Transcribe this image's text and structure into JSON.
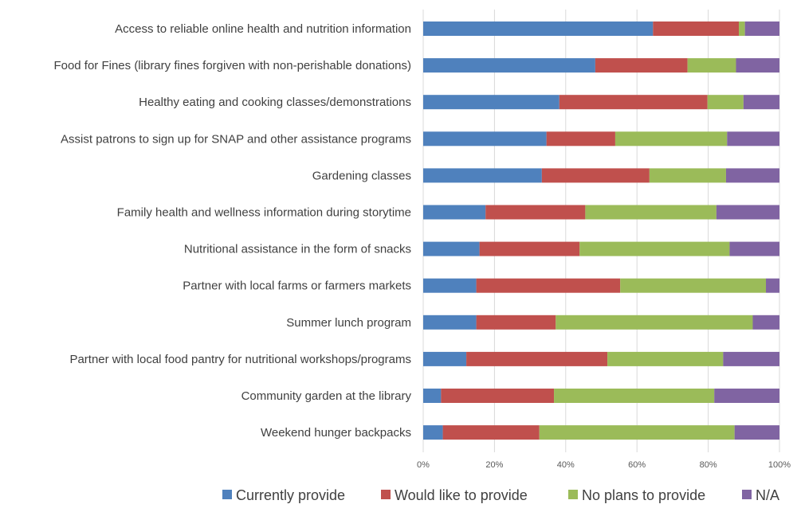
{
  "chart_data": {
    "type": "bar",
    "orientation": "horizontal",
    "stacked": "percent",
    "title": "",
    "xlabel": "",
    "ylabel": "",
    "xlim": [
      0,
      100
    ],
    "x_ticks": [
      "0%",
      "20%",
      "40%",
      "60%",
      "80%",
      "100%"
    ],
    "grid": true,
    "legend_position": "bottom",
    "categories": [
      "Access to reliable online health and nutrition information",
      "Food for Fines (library fines forgiven with non-perishable donations)",
      "Healthy eating and cooking classes/demonstrations",
      "Assist patrons to sign up for SNAP and other assistance programs",
      "Gardening classes",
      "Family health and wellness information during storytime",
      "Nutritional assistance in the form of snacks",
      "Partner with local farms or farmers markets",
      "Summer lunch program",
      "Partner with local food pantry for nutritional workshops/programs",
      "Community garden at the library",
      "Weekend hunger backpacks"
    ],
    "series": [
      {
        "name": "Currently provide",
        "color": "#4f81bd",
        "values": [
          64.5,
          48.3,
          38.2,
          34.6,
          33.3,
          17.5,
          15.8,
          14.9,
          14.9,
          12.1,
          5.0,
          5.5
        ]
      },
      {
        "name": "Would like to provide",
        "color": "#c0504d",
        "values": [
          24.1,
          25.9,
          41.6,
          19.3,
          30.2,
          28.0,
          28.1,
          40.4,
          22.3,
          39.6,
          31.7,
          27.1
        ]
      },
      {
        "name": "No plans to provide",
        "color": "#9bbb59",
        "values": [
          1.7,
          13.6,
          10.1,
          31.4,
          21.5,
          36.8,
          42.1,
          40.9,
          55.3,
          32.5,
          45.0,
          54.8
        ]
      },
      {
        "name": "N/A",
        "color": "#8064a2",
        "values": [
          9.7,
          12.2,
          10.1,
          14.7,
          15.0,
          17.7,
          14.0,
          3.8,
          7.5,
          15.8,
          18.3,
          12.6
        ]
      }
    ]
  }
}
